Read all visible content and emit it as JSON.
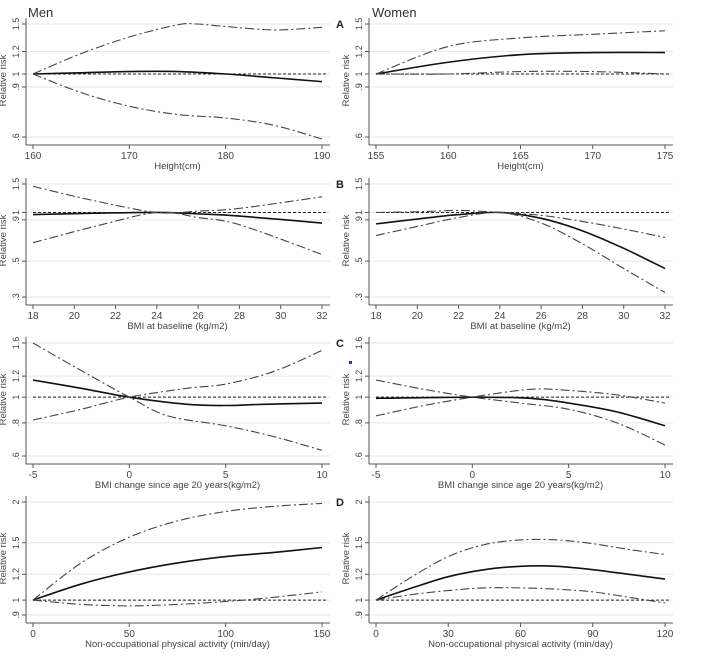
{
  "column_titles": {
    "men": "Men",
    "women": "Women"
  },
  "row_labels": [
    "A",
    "B",
    "C",
    "D"
  ],
  "colors": {
    "estimate": "#111111",
    "ci": "#444444",
    "reference": "#222222",
    "grid": "#e6e6e6",
    "axis": "#555555"
  },
  "chart_data": [
    {
      "type": "line",
      "panel": "A",
      "group": "Men",
      "xlabel": "Height(cm)",
      "ylabel": "Relative risk",
      "yscale": "log",
      "xlim": [
        160,
        190
      ],
      "xticks": [
        160,
        170,
        180,
        190
      ],
      "ylim": [
        0.6,
        1.5
      ],
      "yticks": [
        1.5,
        1.2,
        1,
        0.9,
        0.6
      ],
      "ytick_labels": [
        "1.5",
        "1.2",
        "1",
        ".9",
        ".6"
      ],
      "reference": 1,
      "series": [
        {
          "name": "estimate",
          "points": [
            [
              160,
              1
            ],
            [
              165,
              1.01
            ],
            [
              170,
              1.02
            ],
            [
              175,
              1.02
            ],
            [
              180,
              1.0
            ],
            [
              185,
              0.97
            ],
            [
              190,
              0.94
            ]
          ]
        },
        {
          "name": "upper CI",
          "points": [
            [
              160,
              1
            ],
            [
              165,
              1.18
            ],
            [
              170,
              1.35
            ],
            [
              175,
              1.49
            ],
            [
              177,
              1.5
            ],
            [
              180,
              1.47
            ],
            [
              185,
              1.43
            ],
            [
              190,
              1.46
            ]
          ]
        },
        {
          "name": "lower CI",
          "points": [
            [
              160,
              1
            ],
            [
              165,
              0.86
            ],
            [
              170,
              0.77
            ],
            [
              175,
              0.72
            ],
            [
              180,
              0.7
            ],
            [
              185,
              0.66
            ],
            [
              190,
              0.59
            ]
          ]
        }
      ]
    },
    {
      "type": "line",
      "panel": "A",
      "group": "Women",
      "xlabel": "Height(cm)",
      "ylabel": "Relative risk",
      "yscale": "log",
      "xlim": [
        155,
        175
      ],
      "xticks": [
        155,
        160,
        165,
        170,
        175
      ],
      "ylim": [
        0.6,
        1.5
      ],
      "yticks": [
        1.5,
        1.2,
        1,
        0.9,
        0.6
      ],
      "ytick_labels": [
        "1.5",
        "1.2",
        "1",
        ".9",
        ".6"
      ],
      "reference": 1,
      "series": [
        {
          "name": "estimate",
          "points": [
            [
              155,
              1
            ],
            [
              160,
              1.1
            ],
            [
              165,
              1.17
            ],
            [
              170,
              1.19
            ],
            [
              175,
              1.19
            ]
          ]
        },
        {
          "name": "upper CI",
          "points": [
            [
              155,
              1
            ],
            [
              160,
              1.25
            ],
            [
              165,
              1.34
            ],
            [
              170,
              1.38
            ],
            [
              175,
              1.42
            ]
          ]
        },
        {
          "name": "lower CI",
          "points": [
            [
              155,
              1
            ],
            [
              160,
              1.0
            ],
            [
              165,
              1.02
            ],
            [
              170,
              1.02
            ],
            [
              175,
              1.0
            ]
          ]
        }
      ]
    },
    {
      "type": "line",
      "panel": "B",
      "group": "Men",
      "xlabel": "BMI at baseline (kg/m2)",
      "ylabel": "Relative risk",
      "yscale": "log",
      "xlim": [
        18,
        32
      ],
      "xticks": [
        18,
        20,
        22,
        24,
        26,
        28,
        30,
        32
      ],
      "ylim": [
        0.3,
        1.5
      ],
      "yticks": [
        1.5,
        1,
        0.9,
        0.5,
        0.3
      ],
      "ytick_labels": [
        "1.5",
        "1",
        ".9",
        ".5",
        ".3"
      ],
      "reference": 1,
      "series": [
        {
          "name": "estimate",
          "points": [
            [
              18,
              0.97
            ],
            [
              21,
              0.99
            ],
            [
              24,
              1.0
            ],
            [
              26,
              0.98
            ],
            [
              28,
              0.95
            ],
            [
              32,
              0.86
            ]
          ]
        },
        {
          "name": "upper CI",
          "points": [
            [
              18,
              1.45
            ],
            [
              21,
              1.18
            ],
            [
              24,
              1.0
            ],
            [
              26,
              1.02
            ],
            [
              28,
              1.06
            ],
            [
              32,
              1.25
            ]
          ]
        },
        {
          "name": "lower CI",
          "points": [
            [
              18,
              0.65
            ],
            [
              21,
              0.82
            ],
            [
              24,
              1.0
            ],
            [
              26,
              0.93
            ],
            [
              28,
              0.84
            ],
            [
              32,
              0.55
            ]
          ]
        }
      ]
    },
    {
      "type": "line",
      "panel": "B",
      "group": "Women",
      "xlabel": "BMI at baseline (kg/m2)",
      "ylabel": "Relative risk",
      "yscale": "log",
      "xlim": [
        18,
        32
      ],
      "xticks": [
        18,
        20,
        22,
        24,
        26,
        28,
        30,
        32
      ],
      "ylim": [
        0.3,
        1.5
      ],
      "yticks": [
        1.5,
        1,
        0.9,
        0.5,
        0.3
      ],
      "ytick_labels": [
        "1.5",
        "1",
        ".9",
        ".5",
        ".3"
      ],
      "reference": 1,
      "series": [
        {
          "name": "estimate",
          "points": [
            [
              18,
              0.85
            ],
            [
              20,
              0.91
            ],
            [
              22,
              0.97
            ],
            [
              24,
              1.0
            ],
            [
              26,
              0.92
            ],
            [
              28,
              0.77
            ],
            [
              30,
              0.6
            ],
            [
              32,
              0.45
            ]
          ]
        },
        {
          "name": "upper CI",
          "points": [
            [
              18,
              1.0
            ],
            [
              20,
              1.01
            ],
            [
              22,
              1.03
            ],
            [
              24,
              1.0
            ],
            [
              26,
              0.96
            ],
            [
              28,
              0.88
            ],
            [
              30,
              0.79
            ],
            [
              32,
              0.7
            ]
          ]
        },
        {
          "name": "lower CI",
          "points": [
            [
              18,
              0.72
            ],
            [
              20,
              0.82
            ],
            [
              22,
              0.93
            ],
            [
              24,
              1.0
            ],
            [
              26,
              0.86
            ],
            [
              28,
              0.64
            ],
            [
              30,
              0.45
            ],
            [
              32,
              0.32
            ]
          ]
        }
      ]
    },
    {
      "type": "line",
      "panel": "C",
      "group": "Men",
      "xlabel": "BMI change since age 20 years(kg/m2)",
      "ylabel": "Relative risk",
      "yscale": "log",
      "xlim": [
        -5,
        10
      ],
      "xticks": [
        -5,
        0,
        5,
        10
      ],
      "ylim": [
        0.6,
        1.6
      ],
      "yticks": [
        1.6,
        1.2,
        1,
        0.8,
        0.6
      ],
      "ytick_labels": [
        "1.6",
        "1.2",
        "1",
        ".8",
        ".6"
      ],
      "reference": 1,
      "series": [
        {
          "name": "estimate",
          "points": [
            [
              -5,
              1.16
            ],
            [
              -2.5,
              1.08
            ],
            [
              0,
              1.0
            ],
            [
              3,
              0.94
            ],
            [
              5,
              0.93
            ],
            [
              7,
              0.94
            ],
            [
              10,
              0.95
            ]
          ]
        },
        {
          "name": "CI bound 1",
          "points": [
            [
              -5,
              1.6
            ],
            [
              -2.5,
              1.26
            ],
            [
              0,
              1.0
            ],
            [
              2,
              0.85
            ],
            [
              5,
              0.78
            ],
            [
              7.5,
              0.71
            ],
            [
              10,
              0.63
            ]
          ]
        },
        {
          "name": "CI bound 2",
          "points": [
            [
              -5,
              0.82
            ],
            [
              -2.5,
              0.9
            ],
            [
              0,
              1.0
            ],
            [
              3,
              1.08
            ],
            [
              5,
              1.12
            ],
            [
              7.5,
              1.25
            ],
            [
              10,
              1.5
            ]
          ]
        }
      ]
    },
    {
      "type": "line",
      "panel": "C",
      "group": "Women",
      "xlabel": "BMI change since age 20 years(kg/m2)",
      "ylabel": "Relative risk",
      "yscale": "log",
      "xlim": [
        -5,
        10
      ],
      "xticks": [
        -5,
        0,
        5,
        10
      ],
      "ylim": [
        0.6,
        1.6
      ],
      "yticks": [
        1.6,
        1.2,
        1,
        0.8,
        0.6
      ],
      "ytick_labels": [
        "1.6",
        "1.2",
        "1",
        ".8",
        ".6"
      ],
      "reference": 1,
      "series": [
        {
          "name": "estimate",
          "points": [
            [
              -5,
              0.99
            ],
            [
              0,
              1.0
            ],
            [
              3,
              0.99
            ],
            [
              5,
              0.95
            ],
            [
              7.5,
              0.88
            ],
            [
              10,
              0.78
            ]
          ]
        },
        {
          "name": "CI bound 1",
          "points": [
            [
              -5,
              1.16
            ],
            [
              -2.5,
              1.07
            ],
            [
              0,
              1.0
            ],
            [
              2.5,
              0.95
            ],
            [
              5,
              0.9
            ],
            [
              7.5,
              0.8
            ],
            [
              10,
              0.66
            ]
          ]
        },
        {
          "name": "CI bound 2",
          "points": [
            [
              -5,
              0.85
            ],
            [
              -2.5,
              0.93
            ],
            [
              0,
              1.0
            ],
            [
              3,
              1.07
            ],
            [
              5,
              1.06
            ],
            [
              7.5,
              1.02
            ],
            [
              10,
              0.95
            ]
          ]
        }
      ]
    },
    {
      "type": "line",
      "panel": "D",
      "group": "Men",
      "xlabel": "Non-occupational physical activity (min/day)",
      "ylabel": "Relative risk",
      "yscale": "log",
      "xlim": [
        0,
        150
      ],
      "xticks": [
        0,
        50,
        100,
        150
      ],
      "ylim": [
        0.9,
        2
      ],
      "yticks": [
        2,
        1.5,
        1.2,
        1,
        0.9
      ],
      "ytick_labels": [
        "2",
        "1.5",
        "1.2",
        "1",
        ".9"
      ],
      "reference": 1,
      "series": [
        {
          "name": "estimate",
          "points": [
            [
              0,
              1
            ],
            [
              25,
              1.12
            ],
            [
              50,
              1.22
            ],
            [
              75,
              1.3
            ],
            [
              100,
              1.36
            ],
            [
              125,
              1.4
            ],
            [
              150,
              1.45
            ]
          ]
        },
        {
          "name": "upper CI",
          "points": [
            [
              0,
              1
            ],
            [
              25,
              1.3
            ],
            [
              50,
              1.56
            ],
            [
              75,
              1.75
            ],
            [
              100,
              1.87
            ],
            [
              125,
              1.94
            ],
            [
              150,
              1.98
            ]
          ]
        },
        {
          "name": "lower CI",
          "points": [
            [
              0,
              1
            ],
            [
              25,
              0.97
            ],
            [
              50,
              0.96
            ],
            [
              75,
              0.97
            ],
            [
              100,
              0.99
            ],
            [
              125,
              1.02
            ],
            [
              150,
              1.06
            ]
          ]
        }
      ]
    },
    {
      "type": "line",
      "panel": "D",
      "group": "Women",
      "xlabel": "Non-occupational physical activity (min/day)",
      "ylabel": "Relative risk",
      "yscale": "log",
      "xlim": [
        0,
        120
      ],
      "xticks": [
        0,
        30,
        60,
        90,
        120
      ],
      "ylim": [
        0.9,
        2
      ],
      "yticks": [
        2,
        1.5,
        1.2,
        1,
        0.9
      ],
      "ytick_labels": [
        "2",
        "1.5",
        "1.2",
        "1",
        ".9"
      ],
      "reference": 1,
      "series": [
        {
          "name": "estimate",
          "points": [
            [
              0,
              1
            ],
            [
              15,
              1.09
            ],
            [
              30,
              1.18
            ],
            [
              45,
              1.24
            ],
            [
              60,
              1.27
            ],
            [
              75,
              1.27
            ],
            [
              90,
              1.24
            ],
            [
              105,
              1.2
            ],
            [
              120,
              1.16
            ]
          ]
        },
        {
          "name": "upper CI",
          "points": [
            [
              0,
              1
            ],
            [
              15,
              1.18
            ],
            [
              30,
              1.36
            ],
            [
              45,
              1.48
            ],
            [
              60,
              1.53
            ],
            [
              75,
              1.53
            ],
            [
              90,
              1.49
            ],
            [
              105,
              1.43
            ],
            [
              120,
              1.38
            ]
          ]
        },
        {
          "name": "lower CI",
          "points": [
            [
              0,
              1
            ],
            [
              15,
              1.04
            ],
            [
              30,
              1.07
            ],
            [
              45,
              1.09
            ],
            [
              60,
              1.09
            ],
            [
              75,
              1.08
            ],
            [
              90,
              1.06
            ],
            [
              105,
              1.02
            ],
            [
              120,
              0.98
            ]
          ]
        }
      ]
    }
  ]
}
